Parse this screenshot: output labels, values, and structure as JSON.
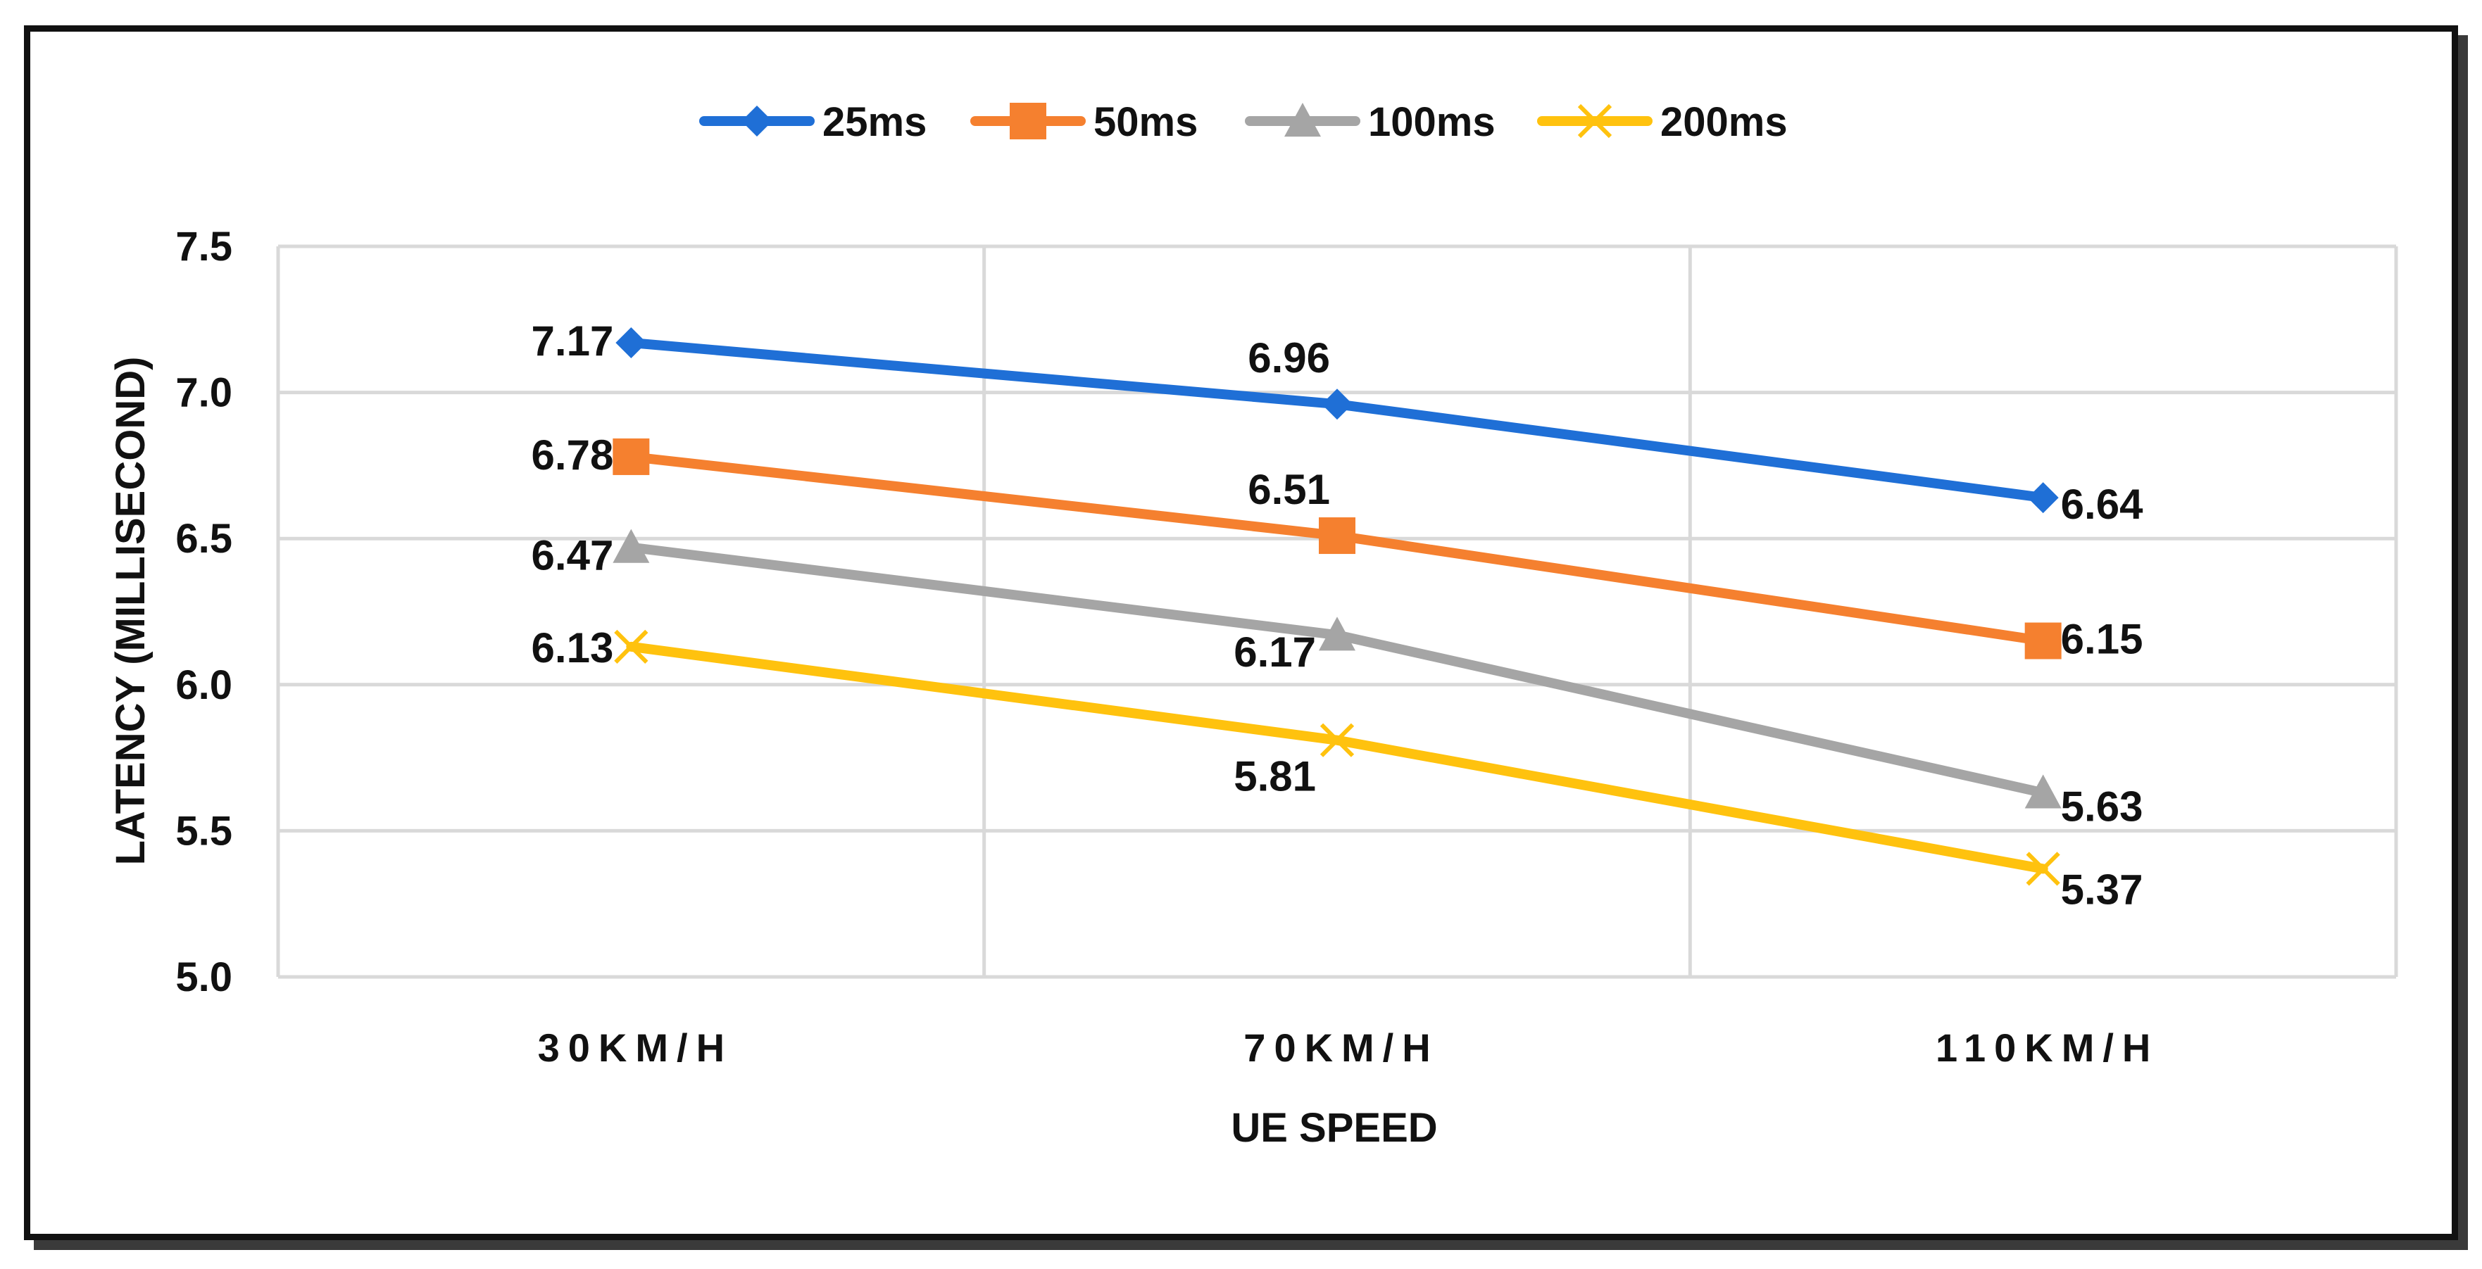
{
  "chart_data": {
    "type": "line",
    "title": "",
    "xlabel": "UE SPEED",
    "ylabel": "LATENCY (MILLISECOND)",
    "categories": [
      "30KM/H",
      "70KM/H",
      "110KM/H"
    ],
    "ylim": [
      5.0,
      7.5
    ],
    "yticks": [
      "5.0",
      "5.5",
      "6.0",
      "6.5",
      "7.0",
      "7.5"
    ],
    "grid": true,
    "legend_position": "top",
    "series": [
      {
        "name": "25ms",
        "values": [
          7.17,
          6.96,
          6.64
        ],
        "color": "#1f6fd6",
        "marker": "diamond",
        "labels": [
          "7.17",
          "6.96",
          "6.64"
        ]
      },
      {
        "name": "50ms",
        "values": [
          6.78,
          6.51,
          6.15
        ],
        "color": "#f5802f",
        "marker": "square",
        "labels": [
          "6.78",
          "6.51",
          "6.15"
        ]
      },
      {
        "name": "100ms",
        "values": [
          6.47,
          6.17,
          5.63
        ],
        "color": "#a5a5a5",
        "marker": "triangle",
        "labels": [
          "6.47",
          "6.17",
          "5.63"
        ]
      },
      {
        "name": "200ms",
        "values": [
          6.13,
          5.81,
          5.37
        ],
        "color": "#ffc20e",
        "marker": "x",
        "labels": [
          "6.13",
          "5.81",
          "5.37"
        ]
      }
    ]
  }
}
